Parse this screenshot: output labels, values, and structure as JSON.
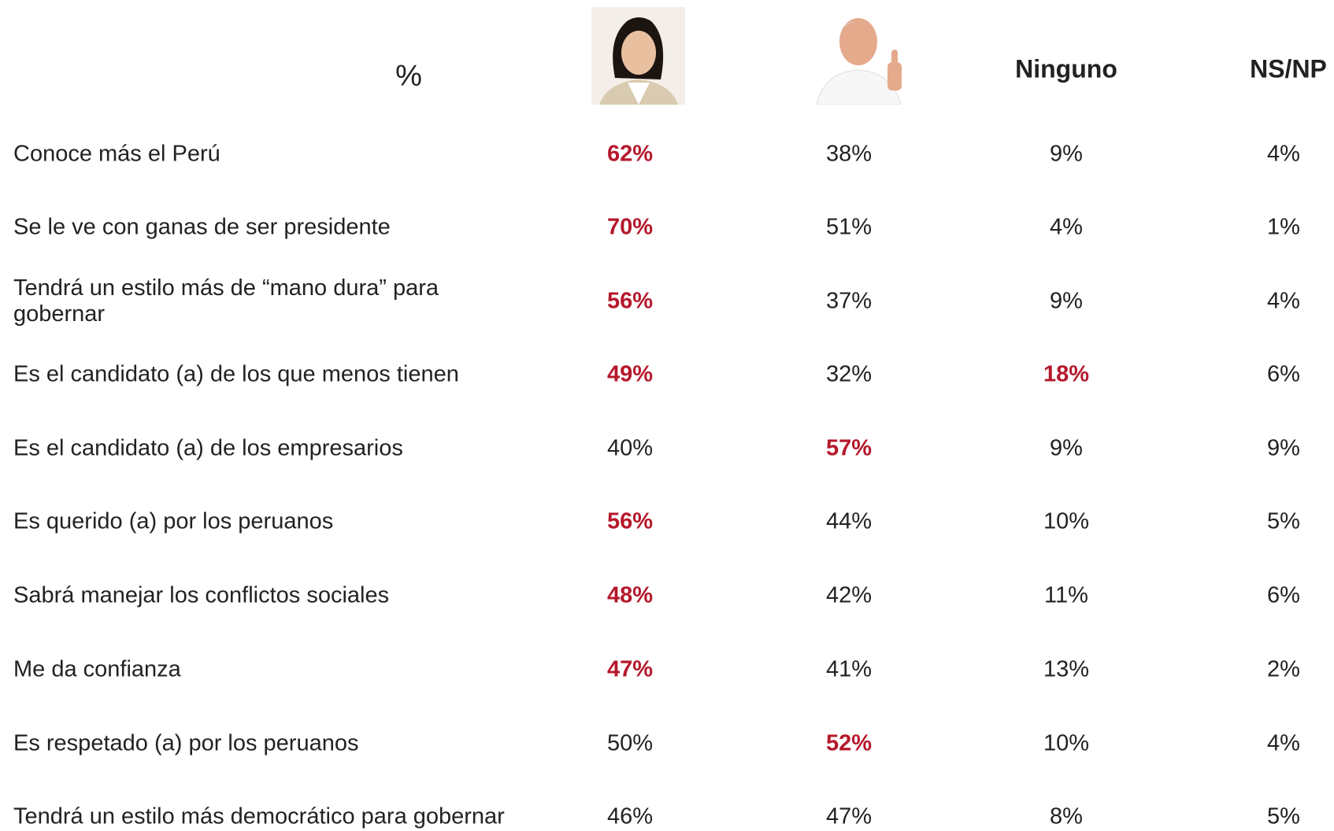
{
  "header": {
    "label": "%",
    "columns": [
      "Ninguno",
      "NS/NP"
    ]
  },
  "emphasis_color": "#b5182b",
  "table": {
    "rows": [
      {
        "label": "Conoce más el Perú",
        "values": [
          "62%",
          "38%",
          "9%",
          "4%"
        ],
        "bold": [
          0
        ]
      },
      {
        "label": "Se le ve con ganas de ser presidente",
        "values": [
          "70%",
          "51%",
          "4%",
          "1%"
        ],
        "bold": [
          0
        ]
      },
      {
        "label": "Tendrá un estilo más de “mano dura” para gobernar",
        "values": [
          "56%",
          "37%",
          "9%",
          "4%"
        ],
        "bold": [
          0
        ]
      },
      {
        "label": "Es el candidato (a) de los que menos tienen",
        "values": [
          "49%",
          "32%",
          "18%",
          "6%"
        ],
        "bold": [
          0,
          2
        ]
      },
      {
        "label": "Es el candidato (a) de los empresarios",
        "values": [
          "40%",
          "57%",
          "9%",
          "9%"
        ],
        "bold": [
          1
        ]
      },
      {
        "label": "Es querido (a) por los peruanos",
        "values": [
          "56%",
          "44%",
          "10%",
          "5%"
        ],
        "bold": [
          0
        ]
      },
      {
        "label": "Sabrá manejar los conflictos sociales",
        "values": [
          "48%",
          "42%",
          "11%",
          "6%"
        ],
        "bold": [
          0
        ]
      },
      {
        "label": "Me da confianza",
        "values": [
          "47%",
          "41%",
          "13%",
          "2%"
        ],
        "bold": [
          0
        ]
      },
      {
        "label": "Es respetado (a) por los peruanos",
        "values": [
          "50%",
          "52%",
          "10%",
          "4%"
        ],
        "bold": [
          1
        ]
      },
      {
        "label": "Tendrá un estilo más democrático para gobernar",
        "values": [
          "46%",
          "47%",
          "8%",
          "5%"
        ],
        "bold": []
      }
    ]
  }
}
